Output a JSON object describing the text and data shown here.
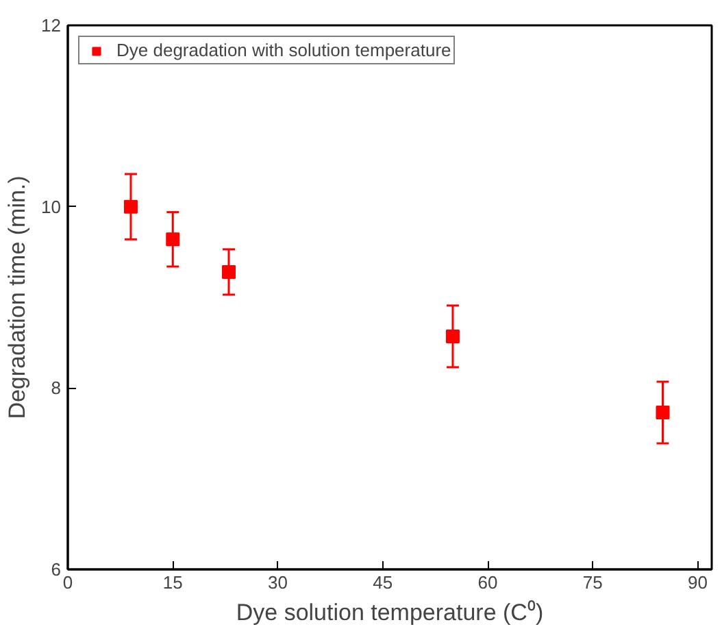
{
  "chart_data": {
    "type": "scatter",
    "xlabel": "Dye solution temperature (C⁰)",
    "ylabel": "Degradation time (min.)",
    "x": [
      9,
      15,
      23,
      55,
      85
    ],
    "series": [
      {
        "name": "Dye degradation with solution temperature",
        "color": "#ff0000",
        "values": [
          10.0,
          9.64,
          9.28,
          8.57,
          7.73
        ],
        "errors": [
          0.36,
          0.3,
          0.25,
          0.34,
          0.34
        ]
      }
    ],
    "xlim": [
      0,
      92
    ],
    "ylim": [
      6,
      12
    ],
    "xticks": [
      0,
      15,
      30,
      45,
      60,
      75,
      90
    ],
    "yticks": [
      6,
      8,
      10,
      12
    ],
    "marker": "square",
    "grid": false,
    "legend": "top left"
  }
}
